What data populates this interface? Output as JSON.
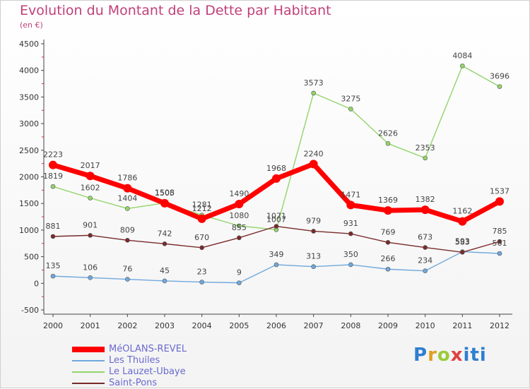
{
  "title": "Evolution du Montant de la Dette par Habitant",
  "unit": "(en €)",
  "logo": "Proxiti",
  "chart_data": {
    "type": "line",
    "title": "Evolution du Montant de la Dette par Habitant",
    "subtitle": "(en €)",
    "x": [
      2000,
      2001,
      2002,
      2003,
      2004,
      2005,
      2006,
      2007,
      2008,
      2009,
      2010,
      2011,
      2012
    ],
    "ylim": [
      -500,
      4500
    ],
    "yticks": [
      -500,
      0,
      500,
      1000,
      1500,
      2000,
      2500,
      3000,
      3500,
      4000,
      4500
    ],
    "grid": false,
    "legend": "bottom-left",
    "series": [
      {
        "name": "MéOLANS-REVEL",
        "color": "#ff0000",
        "values": [
          2223,
          2017,
          1786,
          1505,
          1212,
          1490,
          1968,
          2240,
          1471,
          1369,
          1382,
          1162,
          1537
        ]
      },
      {
        "name": "Les Thuiles",
        "color": "#6fa8dc",
        "values": [
          135,
          106,
          76,
          45,
          23,
          9,
          349,
          313,
          350,
          266,
          234,
          593,
          561
        ]
      },
      {
        "name": "Le Lauzet-Ubaye",
        "color": "#93d46a",
        "values": [
          1819,
          1602,
          1404,
          1508,
          1281,
          1080,
          1007,
          3573,
          3275,
          2626,
          2353,
          4084,
          3696
        ]
      },
      {
        "name": "Saint-Pons",
        "color": "#7a2a2a",
        "values": [
          881,
          901,
          809,
          742,
          670,
          855,
          1071,
          979,
          931,
          769,
          673,
          583,
          785
        ]
      }
    ]
  }
}
